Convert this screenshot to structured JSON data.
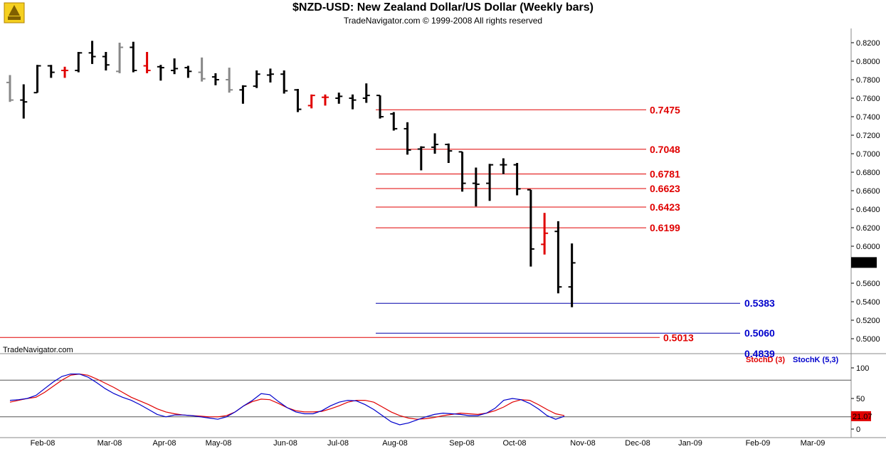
{
  "header": {
    "title": "$NZD-USD:  New Zealand Dollar/US Dollar  (Weekly bars)",
    "copyright": "TradeNavigator.com © 1999-2008 All rights reserved",
    "watermark": "TradeNavigator.com"
  },
  "colors": {
    "up_bar": "#000000",
    "down_bar": "#000000",
    "flat_bar": "#888888",
    "highlight_bar": "#e00000",
    "fib_line": "#e00000",
    "target_line": "#0000aa",
    "stoch_d": "#e00000",
    "stoch_k": "#0000cc"
  },
  "chart_data": [
    {
      "type": "ohlc",
      "ylim": [
        0.4839,
        0.83
      ],
      "y_ticks": [
        "0.8200",
        "0.8000",
        "0.7800",
        "0.7600",
        "0.7400",
        "0.7200",
        "0.7000",
        "0.6800",
        "0.6600",
        "0.6400",
        "0.6200",
        "0.6000",
        "0.5600",
        "0.5400",
        "0.5200",
        "0.5000"
      ],
      "x_labels": [
        "Feb-08",
        "Mar-08",
        "Apr-08",
        "May-08",
        "Jun-08",
        "Jul-08",
        "Aug-08",
        "Sep-08",
        "Oct-08",
        "Nov-08",
        "Dec-08",
        "Jan-09",
        "Feb-09",
        "Mar-09"
      ],
      "last_price": "0.5820",
      "bars": [
        {
          "o": 0.777,
          "h": 0.785,
          "l": 0.756,
          "c": 0.758,
          "color": "gray"
        },
        {
          "o": 0.758,
          "h": 0.775,
          "l": 0.738,
          "c": 0.756,
          "color": "black"
        },
        {
          "o": 0.766,
          "h": 0.796,
          "l": 0.766,
          "c": 0.795,
          "color": "black"
        },
        {
          "o": 0.795,
          "h": 0.796,
          "l": 0.782,
          "c": 0.788,
          "color": "black"
        },
        {
          "o": 0.79,
          "h": 0.794,
          "l": 0.782,
          "c": 0.79,
          "color": "red"
        },
        {
          "o": 0.79,
          "h": 0.81,
          "l": 0.788,
          "c": 0.809,
          "color": "black"
        },
        {
          "o": 0.809,
          "h": 0.822,
          "l": 0.797,
          "c": 0.805,
          "color": "black"
        },
        {
          "o": 0.805,
          "h": 0.81,
          "l": 0.79,
          "c": 0.796,
          "color": "black"
        },
        {
          "o": 0.789,
          "h": 0.82,
          "l": 0.787,
          "c": 0.815,
          "color": "gray"
        },
        {
          "o": 0.815,
          "h": 0.821,
          "l": 0.788,
          "c": 0.79,
          "color": "black"
        },
        {
          "o": 0.795,
          "h": 0.81,
          "l": 0.787,
          "c": 0.79,
          "color": "red"
        },
        {
          "o": 0.794,
          "h": 0.796,
          "l": 0.779,
          "c": 0.793,
          "color": "black"
        },
        {
          "o": 0.79,
          "h": 0.803,
          "l": 0.786,
          "c": 0.792,
          "color": "black"
        },
        {
          "o": 0.793,
          "h": 0.795,
          "l": 0.782,
          "c": 0.789,
          "color": "black"
        },
        {
          "o": 0.788,
          "h": 0.804,
          "l": 0.778,
          "c": 0.781,
          "color": "gray"
        },
        {
          "o": 0.783,
          "h": 0.787,
          "l": 0.774,
          "c": 0.78,
          "color": "black"
        },
        {
          "o": 0.78,
          "h": 0.793,
          "l": 0.766,
          "c": 0.769,
          "color": "gray"
        },
        {
          "o": 0.769,
          "h": 0.774,
          "l": 0.754,
          "c": 0.773,
          "color": "black"
        },
        {
          "o": 0.773,
          "h": 0.79,
          "l": 0.771,
          "c": 0.786,
          "color": "black"
        },
        {
          "o": 0.785,
          "h": 0.792,
          "l": 0.777,
          "c": 0.786,
          "color": "black"
        },
        {
          "o": 0.786,
          "h": 0.79,
          "l": 0.765,
          "c": 0.768,
          "color": "black"
        },
        {
          "o": 0.769,
          "h": 0.77,
          "l": 0.745,
          "c": 0.748,
          "color": "black"
        },
        {
          "o": 0.752,
          "h": 0.764,
          "l": 0.749,
          "c": 0.763,
          "color": "red"
        },
        {
          "o": 0.761,
          "h": 0.764,
          "l": 0.752,
          "c": 0.761,
          "color": "red"
        },
        {
          "o": 0.76,
          "h": 0.766,
          "l": 0.754,
          "c": 0.762,
          "color": "black"
        },
        {
          "o": 0.76,
          "h": 0.764,
          "l": 0.748,
          "c": 0.758,
          "color": "black"
        },
        {
          "o": 0.76,
          "h": 0.776,
          "l": 0.755,
          "c": 0.763,
          "color": "black"
        },
        {
          "o": 0.763,
          "h": 0.763,
          "l": 0.738,
          "c": 0.74,
          "color": "black"
        },
        {
          "o": 0.743,
          "h": 0.745,
          "l": 0.725,
          "c": 0.727,
          "color": "black"
        },
        {
          "o": 0.727,
          "h": 0.734,
          "l": 0.699,
          "c": 0.704,
          "color": "black"
        },
        {
          "o": 0.705,
          "h": 0.708,
          "l": 0.682,
          "c": 0.707,
          "color": "black"
        },
        {
          "o": 0.707,
          "h": 0.722,
          "l": 0.7,
          "c": 0.71,
          "color": "black"
        },
        {
          "o": 0.71,
          "h": 0.711,
          "l": 0.69,
          "c": 0.703,
          "color": "black"
        },
        {
          "o": 0.702,
          "h": 0.702,
          "l": 0.659,
          "c": 0.668,
          "color": "black"
        },
        {
          "o": 0.668,
          "h": 0.685,
          "l": 0.643,
          "c": 0.667,
          "color": "black"
        },
        {
          "o": 0.668,
          "h": 0.689,
          "l": 0.649,
          "c": 0.688,
          "color": "black"
        },
        {
          "o": 0.688,
          "h": 0.695,
          "l": 0.678,
          "c": 0.688,
          "color": "black"
        },
        {
          "o": 0.688,
          "h": 0.69,
          "l": 0.655,
          "c": 0.662,
          "color": "black"
        },
        {
          "o": 0.661,
          "h": 0.661,
          "l": 0.578,
          "c": 0.597,
          "color": "black"
        },
        {
          "o": 0.602,
          "h": 0.636,
          "l": 0.591,
          "c": 0.614,
          "color": "red"
        },
        {
          "o": 0.616,
          "h": 0.627,
          "l": 0.549,
          "c": 0.556,
          "color": "black"
        },
        {
          "o": 0.556,
          "h": 0.603,
          "l": 0.534,
          "c": 0.582,
          "color": "black"
        }
      ],
      "levels": [
        {
          "label": "0.7475",
          "value": 0.7475,
          "kind": "fib"
        },
        {
          "label": "0.7048",
          "value": 0.7048,
          "kind": "fib"
        },
        {
          "label": "0.6781",
          "value": 0.6781,
          "kind": "fib"
        },
        {
          "label": "0.6623",
          "value": 0.6623,
          "kind": "fib"
        },
        {
          "label": "0.6423",
          "value": 0.6423,
          "kind": "fib"
        },
        {
          "label": "0.6199",
          "value": 0.6199,
          "kind": "fib"
        },
        {
          "label": "0.5383",
          "value": 0.5383,
          "kind": "target"
        },
        {
          "label": "0.5060",
          "value": 0.506,
          "kind": "target"
        },
        {
          "label": "0.5013",
          "value": 0.5013,
          "kind": "fib"
        },
        {
          "label": "0.4839",
          "value": 0.4839,
          "kind": "target"
        }
      ]
    },
    {
      "type": "line",
      "title": "",
      "ylim": [
        0,
        100
      ],
      "y_ticks": [
        "100",
        "50",
        "0"
      ],
      "reference_lines": [
        80,
        20
      ],
      "last_value": "21.07",
      "series": [
        {
          "name": "StochD (3)",
          "color": "#e00000",
          "values": [
            44,
            47,
            50,
            52,
            60,
            70,
            80,
            88,
            90,
            88,
            82,
            75,
            68,
            60,
            52,
            46,
            40,
            33,
            28,
            25,
            23,
            22,
            21,
            20,
            20,
            22,
            28,
            38,
            45,
            49,
            48,
            42,
            35,
            30,
            28,
            28,
            29,
            33,
            38,
            44,
            47,
            47,
            44,
            36,
            28,
            22,
            18,
            16,
            17,
            19,
            22,
            24,
            26,
            25,
            24,
            26,
            30,
            36,
            44,
            48,
            47,
            40,
            32,
            25,
            22
          ]
        },
        {
          "name": "StochK (5,3)",
          "color": "#0000cc",
          "values": [
            47,
            48,
            50,
            55,
            66,
            77,
            86,
            90,
            90,
            85,
            76,
            66,
            58,
            52,
            47,
            40,
            32,
            24,
            20,
            23,
            23,
            22,
            20,
            18,
            16,
            20,
            28,
            38,
            47,
            58,
            56,
            45,
            35,
            28,
            25,
            25,
            30,
            38,
            44,
            47,
            46,
            40,
            32,
            22,
            12,
            7,
            10,
            15,
            20,
            24,
            26,
            25,
            24,
            22,
            22,
            26,
            34,
            47,
            50,
            48,
            42,
            33,
            22,
            16,
            21
          ]
        }
      ]
    }
  ]
}
